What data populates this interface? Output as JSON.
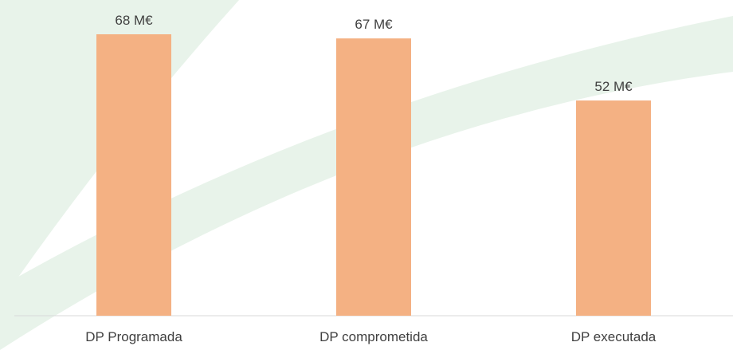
{
  "chart_data": {
    "type": "bar",
    "categories": [
      "DP Programada",
      "DP comprometida",
      "DP executada"
    ],
    "values": [
      68,
      67,
      52
    ],
    "value_labels": [
      "68 M€",
      "67 M€",
      "52 M€"
    ],
    "title": "",
    "xlabel": "",
    "ylabel": "",
    "ylim": [
      0,
      68
    ],
    "grid": false,
    "legend": "none"
  },
  "colors": {
    "bar": "#f4b183",
    "axis": "#d9d9d9",
    "text": "#404040",
    "background_swoosh": "#e8f3ea"
  }
}
